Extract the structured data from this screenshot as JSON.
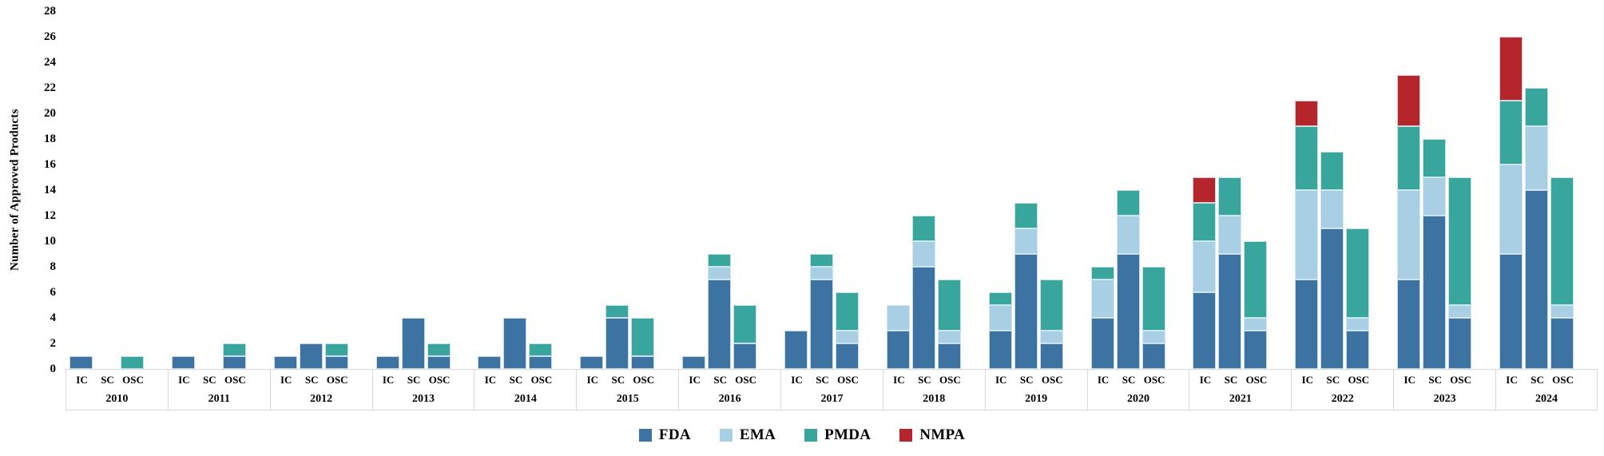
{
  "chart_data": {
    "type": "bar",
    "stacked": true,
    "title": "",
    "ylabel": "Number of Approved Products",
    "xlabel": "",
    "ylim": [
      0,
      28
    ],
    "ytick_step": 2,
    "ytick_labels": [
      "0",
      "2",
      "4",
      "6",
      "8",
      "10",
      "12",
      "14",
      "16",
      "18",
      "20",
      "22",
      "24",
      "26",
      "28"
    ],
    "grid": false,
    "legend_position": "bottom-center",
    "sub_categories": [
      "IC",
      "SC",
      "OSC"
    ],
    "series_names": [
      "FDA",
      "EMA",
      "PMDA",
      "NMPA"
    ],
    "series_colors": {
      "FDA": "#3C73A2",
      "EMA": "#A9CFE4",
      "PMDA": "#38A69C",
      "NMPA": "#B6252B"
    },
    "divider_color": "#D9D9D9",
    "years": [
      {
        "year": "2010",
        "values": [
          [
            1,
            0,
            0,
            0
          ],
          [
            0,
            0,
            0,
            0
          ],
          [
            0,
            0,
            1,
            0
          ]
        ]
      },
      {
        "year": "2011",
        "values": [
          [
            1,
            0,
            0,
            0
          ],
          [
            0,
            0,
            0,
            0
          ],
          [
            1,
            0,
            1,
            0
          ]
        ]
      },
      {
        "year": "2012",
        "values": [
          [
            1,
            0,
            0,
            0
          ],
          [
            2,
            0,
            0,
            0
          ],
          [
            1,
            0,
            1,
            0
          ]
        ]
      },
      {
        "year": "2013",
        "values": [
          [
            1,
            0,
            0,
            0
          ],
          [
            4,
            0,
            0,
            0
          ],
          [
            1,
            0,
            1,
            0
          ]
        ]
      },
      {
        "year": "2014",
        "values": [
          [
            1,
            0,
            0,
            0
          ],
          [
            4,
            0,
            0,
            0
          ],
          [
            1,
            0,
            1,
            0
          ]
        ]
      },
      {
        "year": "2015",
        "values": [
          [
            1,
            0,
            0,
            0
          ],
          [
            4,
            0,
            1,
            0
          ],
          [
            1,
            0,
            3,
            0
          ]
        ]
      },
      {
        "year": "2016",
        "values": [
          [
            1,
            0,
            0,
            0
          ],
          [
            7,
            1,
            1,
            0
          ],
          [
            2,
            0,
            3,
            0
          ]
        ]
      },
      {
        "year": "2017",
        "values": [
          [
            3,
            0,
            0,
            0
          ],
          [
            7,
            1,
            1,
            0
          ],
          [
            2,
            1,
            3,
            0
          ]
        ]
      },
      {
        "year": "2018",
        "values": [
          [
            3,
            2,
            0,
            0
          ],
          [
            8,
            2,
            2,
            0
          ],
          [
            2,
            1,
            4,
            0
          ]
        ]
      },
      {
        "year": "2019",
        "values": [
          [
            3,
            2,
            1,
            0
          ],
          [
            9,
            2,
            2,
            0
          ],
          [
            2,
            1,
            4,
            0
          ]
        ]
      },
      {
        "year": "2020",
        "values": [
          [
            4,
            3,
            1,
            0
          ],
          [
            9,
            3,
            2,
            0
          ],
          [
            2,
            1,
            5,
            0
          ]
        ]
      },
      {
        "year": "2021",
        "values": [
          [
            6,
            4,
            3,
            2
          ],
          [
            9,
            3,
            3,
            0
          ],
          [
            3,
            1,
            6,
            0
          ]
        ]
      },
      {
        "year": "2022",
        "values": [
          [
            7,
            7,
            5,
            2
          ],
          [
            11,
            3,
            3,
            0
          ],
          [
            3,
            1,
            7,
            0
          ]
        ]
      },
      {
        "year": "2023",
        "values": [
          [
            7,
            7,
            5,
            4
          ],
          [
            12,
            3,
            3,
            0
          ],
          [
            4,
            1,
            10,
            0
          ]
        ]
      },
      {
        "year": "2024",
        "values": [
          [
            9,
            7,
            5,
            5
          ],
          [
            14,
            5,
            3,
            0
          ],
          [
            4,
            1,
            10,
            0
          ]
        ]
      }
    ],
    "legend": [
      "FDA",
      "EMA",
      "PMDA",
      "NMPA"
    ]
  }
}
